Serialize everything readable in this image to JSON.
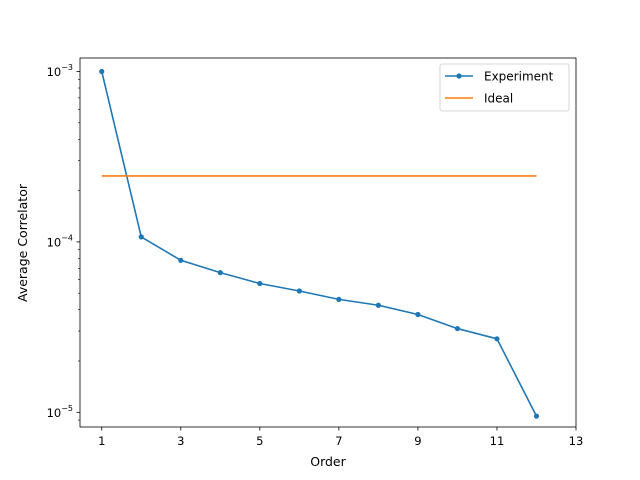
{
  "chart_data": {
    "type": "line",
    "xlabel": "Order",
    "ylabel": "Average Correlator",
    "y_scale": "log",
    "xlim": [
      0.45,
      13
    ],
    "ylim": [
      8.2e-06,
      0.0012
    ],
    "x_ticks": [
      1,
      3,
      5,
      7,
      9,
      11,
      13
    ],
    "y_ticks": [
      {
        "value": 1e-05,
        "base": "10",
        "exp": "−5"
      },
      {
        "value": 0.0001,
        "base": "10",
        "exp": "−4"
      },
      {
        "value": 0.001,
        "base": "10",
        "exp": "−3"
      }
    ],
    "grid": false,
    "legend_position": "top-right",
    "series": [
      {
        "name": "Experiment",
        "color": "#1f77b4",
        "marker": "dot",
        "x": [
          1,
          2,
          3,
          4,
          5,
          6,
          7,
          8,
          9,
          10,
          11,
          12
        ],
        "y": [
          0.001,
          0.000107,
          7.8e-05,
          6.6e-05,
          5.7e-05,
          5.15e-05,
          4.6e-05,
          4.25e-05,
          3.75e-05,
          3.1e-05,
          2.7e-05,
          9.5e-06
        ]
      },
      {
        "name": "Ideal",
        "color": "#ff7f0e",
        "marker": "none",
        "x": [
          1,
          12
        ],
        "y": [
          0.000244,
          0.000244
        ]
      }
    ]
  }
}
